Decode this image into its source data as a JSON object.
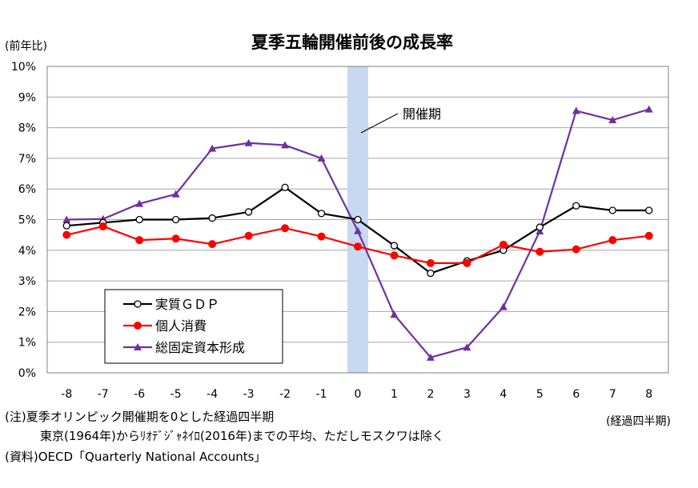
{
  "chart_data": {
    "type": "line",
    "title": "夏季五輪開催前後の成長率",
    "ylabel": "(前年比)",
    "xlabel": "(経過四半期)",
    "x": [
      -8,
      -7,
      -6,
      -5,
      -4,
      -3,
      -2,
      -1,
      0,
      1,
      2,
      3,
      4,
      5,
      6,
      7,
      8
    ],
    "x_tick_labels": [
      "-8",
      "-7",
      "-6",
      "-5",
      "-4",
      "-3",
      "-2",
      "-1",
      "0",
      "1",
      "2",
      "3",
      "4",
      "5",
      "6",
      "7",
      "8"
    ],
    "ylim": [
      0,
      10
    ],
    "y_tick_labels": [
      "0%",
      "1%",
      "2%",
      "3%",
      "4%",
      "5%",
      "6%",
      "7%",
      "8%",
      "9%",
      "10%"
    ],
    "grid": true,
    "legend_position": "bottom-left",
    "highlight": {
      "label": "開催期",
      "x": 0,
      "color": "#c6d9f1"
    },
    "series": [
      {
        "name": "実質ＧＤＰ",
        "color": "#000000",
        "marker": "open-circle",
        "values": [
          4.8,
          4.9,
          5.0,
          5.0,
          5.05,
          5.25,
          6.05,
          5.2,
          5.0,
          4.15,
          3.25,
          3.65,
          4.0,
          4.75,
          5.45,
          5.3,
          5.3
        ]
      },
      {
        "name": "個人消費",
        "color": "#ff0000",
        "marker": "filled-circle",
        "values": [
          4.5,
          4.78,
          4.33,
          4.38,
          4.2,
          4.47,
          4.72,
          4.45,
          4.12,
          3.83,
          3.58,
          3.58,
          4.18,
          3.95,
          4.03,
          4.33,
          4.47
        ]
      },
      {
        "name": "総固定資本形成",
        "color": "#7030a0",
        "marker": "triangle",
        "values": [
          5.0,
          5.02,
          5.52,
          5.83,
          7.32,
          7.5,
          7.43,
          7.0,
          4.63,
          1.9,
          0.5,
          0.83,
          2.15,
          4.62,
          8.55,
          8.25,
          8.6
        ]
      }
    ]
  },
  "notes": {
    "line1": "(注)夏季オリンピック開催期を0とした経過四半期",
    "line2": "東京(1964年)からﾘｵﾃﾞｼﾞｬﾈｲﾛ(2016年)までの平均、ただしモスクワは除く",
    "line3": "(資料)OECD「Quarterly National Accounts」"
  }
}
